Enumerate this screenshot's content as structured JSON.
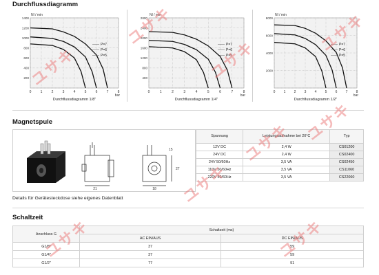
{
  "sections": {
    "flow_title": "Durchflussdiagramm",
    "coil_title": "Magnetspule",
    "switch_title": "Schaltzeit"
  },
  "chart_data": [
    {
      "type": "line",
      "title": "",
      "xlabel": "Durchflussdiagramm 1/8\"",
      "x_unit": "bar",
      "ylabel": "Nl / min",
      "xlim": [
        0,
        8
      ],
      "ylim": [
        0,
        1400
      ],
      "x_ticks": [
        "0",
        "1",
        "2",
        "3",
        "4",
        "5",
        "6",
        "7",
        "8"
      ],
      "y_ticks": [
        "",
        "200",
        "400",
        "600",
        "800",
        "1000",
        "1200",
        "1400"
      ],
      "legend": [
        "P=7",
        "P=6",
        "P=5"
      ],
      "series": [
        {
          "name": "P=7",
          "x": [
            0,
            2,
            3,
            4,
            5,
            6,
            6.6,
            7
          ],
          "y": [
            1200,
            1180,
            1120,
            1030,
            880,
            660,
            380,
            0
          ]
        },
        {
          "name": "P=6",
          "x": [
            0,
            2,
            3,
            4,
            5,
            5.6,
            6
          ],
          "y": [
            1020,
            990,
            930,
            820,
            620,
            330,
            0
          ]
        },
        {
          "name": "P=5",
          "x": [
            0,
            2,
            3,
            4,
            4.6,
            5
          ],
          "y": [
            880,
            850,
            770,
            600,
            330,
            0
          ]
        }
      ]
    },
    {
      "type": "line",
      "title": "",
      "xlabel": "Durchflussdiagramm 1/4\"",
      "x_unit": "bar",
      "ylabel": "Nl / min",
      "xlim": [
        0,
        8
      ],
      "ylim": [
        0,
        2800
      ],
      "x_ticks": [
        "0",
        "1",
        "2",
        "3",
        "4",
        "5",
        "6",
        "7",
        "8"
      ],
      "y_ticks": [
        "",
        "400",
        "800",
        "1200",
        "1600",
        "2000",
        "2400",
        "2800"
      ],
      "legend": [
        "P=7",
        "P=6",
        "P=5"
      ],
      "series": [
        {
          "name": "P=7",
          "x": [
            0,
            2,
            3,
            4,
            5,
            6,
            6.6,
            7
          ],
          "y": [
            2250,
            2220,
            2120,
            1950,
            1680,
            1260,
            720,
            0
          ]
        },
        {
          "name": "P=6",
          "x": [
            0,
            2,
            3,
            4,
            5,
            5.6,
            6
          ],
          "y": [
            1900,
            1860,
            1740,
            1530,
            1150,
            630,
            0
          ]
        },
        {
          "name": "P=5",
          "x": [
            0,
            2,
            3,
            4,
            4.6,
            5
          ],
          "y": [
            1650,
            1600,
            1450,
            1130,
            620,
            0
          ]
        }
      ]
    },
    {
      "type": "line",
      "title": "",
      "xlabel": "Durchflussdiagramm 1/2\"",
      "x_unit": "bar",
      "ylabel": "Nl / min",
      "xlim": [
        0,
        8
      ],
      "ylim": [
        0,
        8000
      ],
      "x_ticks": [
        "0",
        "1",
        "2",
        "3",
        "4",
        "5",
        "6",
        "7",
        "8"
      ],
      "y_ticks": [
        "",
        "2000",
        "4000",
        "6000",
        "8000"
      ],
      "legend": [
        "P=7",
        "P=6",
        "P=5"
      ],
      "series": [
        {
          "name": "P=7",
          "x": [
            0,
            2,
            3,
            4,
            5,
            6,
            6.6,
            7
          ],
          "y": [
            7200,
            7130,
            6800,
            6250,
            5380,
            4050,
            2300,
            0
          ]
        },
        {
          "name": "P=6",
          "x": [
            0,
            2,
            3,
            4,
            5,
            5.6,
            6
          ],
          "y": [
            6200,
            6060,
            5650,
            4950,
            3720,
            2050,
            0
          ]
        },
        {
          "name": "P=5",
          "x": [
            0,
            2,
            3,
            4,
            4.6,
            5
          ],
          "y": [
            5200,
            5040,
            4570,
            3580,
            1960,
            0
          ]
        }
      ]
    }
  ],
  "coil_table": {
    "headers": [
      "Spannung",
      "Leistungsaufnahme bei 20°C",
      "Typ"
    ],
    "rows": [
      [
        "12V DC",
        "2,4 W",
        "CS01200"
      ],
      [
        "24V DC",
        "2,4 W",
        "CS02400"
      ],
      [
        "24V 50/60Hz",
        "3,5 VA",
        "CS02450"
      ],
      [
        "110V 50/60Hz",
        "3,5 VA",
        "CS11060"
      ],
      [
        "220V 50/60Hz",
        "3,5 VA",
        "CS22060"
      ]
    ]
  },
  "coil_drawing": {
    "dimensions": [
      "21",
      "18",
      "27",
      "15"
    ]
  },
  "note": "Details für Gerätesteckdose siehe eigenes Datenblatt",
  "switch_table": {
    "col_header_left": "Anschluss G",
    "col_header_group": "Schaltzeit (ms)",
    "subheaders": [
      "AC EIN/AUS",
      "DC EIN/AUS"
    ],
    "rows": [
      [
        "G1/8\"",
        "37",
        "59"
      ],
      [
        "G1/4\"",
        "37",
        "59"
      ],
      [
        "G1/2\"",
        "77",
        "91"
      ]
    ]
  },
  "colors": {
    "curve": "#111111",
    "gridline": "#9a9a9a",
    "watermark": "#ec7878",
    "shading": "#ececec"
  },
  "watermark_text": "ユサキ"
}
